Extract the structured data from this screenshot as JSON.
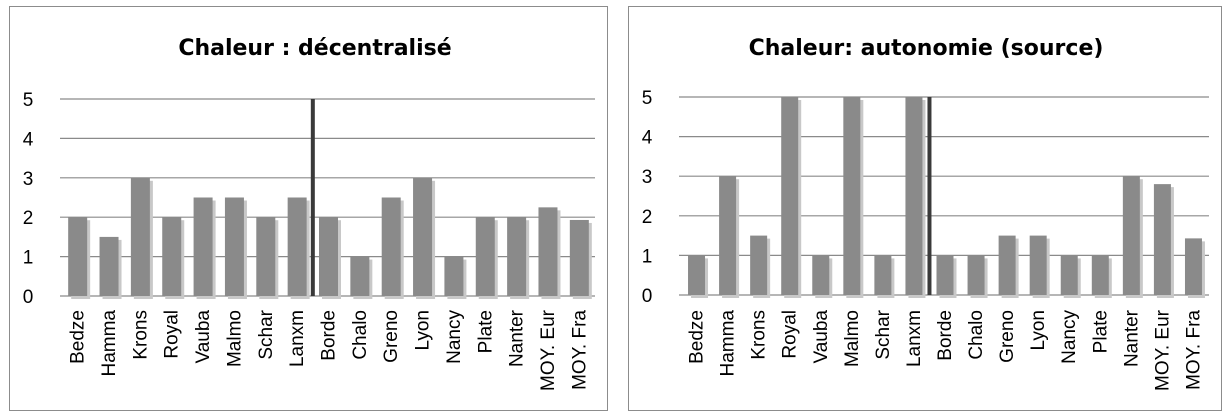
{
  "colors": {
    "bar": "#8a8a8a",
    "bar_shadow": "#c8c8c8",
    "grid": "#8a8a8a",
    "marker": "#3a3a3a",
    "border": "#8c8c8c"
  },
  "chart_data": [
    {
      "type": "bar",
      "title": "Chaleur : décentralisé",
      "categories": [
        "Bedze",
        "Hamma",
        "Krons",
        "Royal",
        "Vauba",
        "Malmo",
        "Schar",
        "Lanxm",
        "Borde",
        "Chalo",
        "Greno",
        "Lyon",
        "Nancy",
        "Plate",
        "Nanter",
        "MOY. Eur",
        "MOY. Fra"
      ],
      "values": [
        2,
        1.5,
        3,
        2,
        2.5,
        2.5,
        2,
        2.5,
        2,
        1,
        2.5,
        3,
        1,
        2,
        2,
        2.25,
        1.93
      ],
      "ylim": [
        0,
        5
      ],
      "yticks": [
        "0",
        "1",
        "2",
        "3",
        "4",
        "5"
      ],
      "grid": true,
      "marker_line": {
        "between": [
          "Lanxm",
          "Borde"
        ],
        "from": 0,
        "to": 5
      }
    },
    {
      "type": "bar",
      "title": "Chaleur: autonomie (source)",
      "categories": [
        "Bedze",
        "Hamma",
        "Krons",
        "Royal",
        "Vauba",
        "Malmo",
        "Schar",
        "Lanxm",
        "Borde",
        "Chalo",
        "Greno",
        "Lyon",
        "Nancy",
        "Plate",
        "Nanter",
        "MOY. Eur",
        "MOY. Fra"
      ],
      "values": [
        1,
        3,
        1.5,
        5,
        1,
        5,
        1,
        5,
        1,
        1,
        1.5,
        1.5,
        1,
        1,
        3,
        2.8,
        1.43
      ],
      "ylim": [
        0,
        5
      ],
      "yticks": [
        "0",
        "1",
        "2",
        "3",
        "4",
        "5"
      ],
      "grid": true,
      "marker_line": {
        "between": [
          "Lanxm",
          "Borde"
        ],
        "from": 0,
        "to": 5
      }
    }
  ]
}
